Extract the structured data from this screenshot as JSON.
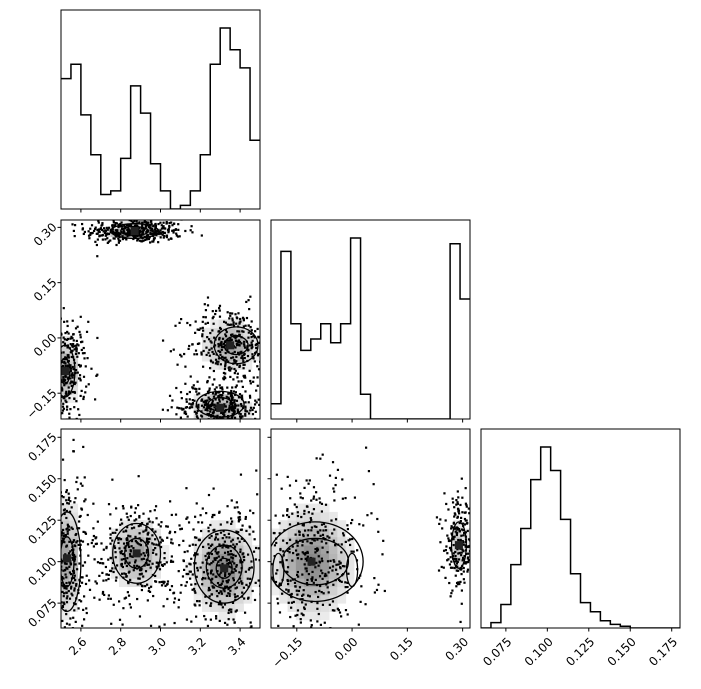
{
  "chart_data": {
    "type": "corner",
    "title": "",
    "parameters": [
      {
        "label": "",
        "range": [
          2.5,
          3.5
        ],
        "ticks": [
          "2.6",
          "2.8",
          "3.0",
          "3.2",
          "3.4"
        ],
        "tick_values": [
          2.6,
          2.8,
          3.0,
          3.2,
          3.4
        ]
      },
      {
        "label": "",
        "range": [
          -0.22,
          0.32
        ],
        "ticks": [
          "−0.15",
          "0.00",
          "0.15",
          "0.30"
        ],
        "tick_values": [
          -0.15,
          0.0,
          0.15,
          0.3
        ]
      },
      {
        "label": "",
        "range": [
          0.06,
          0.18
        ],
        "ticks": [
          "0.075",
          "0.100",
          "0.125",
          "0.150",
          "0.175"
        ],
        "tick_values": [
          0.075,
          0.1,
          0.125,
          0.15,
          0.175
        ]
      }
    ],
    "histograms": [
      {
        "param": 0,
        "bin_edges": [
          2.5,
          2.525,
          2.55,
          2.575,
          2.6,
          2.625,
          2.65,
          2.675,
          2.7,
          2.725,
          2.75,
          2.775,
          2.8,
          2.825,
          2.85,
          2.875,
          2.9,
          2.925,
          2.95,
          2.975,
          3.0,
          3.025,
          3.05,
          3.075,
          3.1,
          3.125,
          3.15,
          3.175,
          3.2,
          3.225,
          3.25,
          3.275,
          3.3,
          3.325,
          3.35,
          3.375,
          3.4,
          3.425,
          3.45,
          3.475,
          3.5
        ],
        "counts": [
          0.72,
          0.72,
          0.8,
          0.8,
          0.52,
          0.52,
          0.3,
          0.3,
          0.08,
          0.08,
          0.1,
          0.1,
          0.28,
          0.28,
          0.68,
          0.68,
          0.53,
          0.53,
          0.25,
          0.25,
          0.1,
          0.1,
          0.0,
          0.0,
          0.02,
          0.02,
          0.1,
          0.1,
          0.3,
          0.3,
          0.8,
          0.8,
          1.0,
          1.0,
          0.88,
          0.88,
          0.78,
          0.78,
          0.38,
          0.38
        ]
      },
      {
        "param": 1,
        "bin_edges": [
          -0.22,
          -0.2065,
          -0.193,
          -0.1795,
          -0.166,
          -0.1525,
          -0.139,
          -0.1255,
          -0.112,
          -0.0985,
          -0.085,
          -0.0715,
          -0.058,
          -0.0445,
          -0.031,
          -0.0175,
          -0.004,
          0.0095,
          0.023,
          0.0365,
          0.05,
          0.0635,
          0.077,
          0.0905,
          0.104,
          0.1175,
          0.131,
          0.1445,
          0.158,
          0.1715,
          0.185,
          0.1985,
          0.212,
          0.2255,
          0.239,
          0.2525,
          0.266,
          0.2795,
          0.293,
          0.3065,
          0.32
        ],
        "counts": [
          0.08,
          0.08,
          0.88,
          0.88,
          0.5,
          0.5,
          0.36,
          0.36,
          0.42,
          0.42,
          0.5,
          0.5,
          0.4,
          0.4,
          0.5,
          0.5,
          0.95,
          0.95,
          0.13,
          0.13,
          0.0,
          0.0,
          0.0,
          0.0,
          0.0,
          0.0,
          0.0,
          0.0,
          0.0,
          0.0,
          0.0,
          0.0,
          0.0,
          0.0,
          0.0,
          0.0,
          0.92,
          0.92,
          0.63,
          0.63
        ]
      },
      {
        "param": 2,
        "bin_edges": [
          0.06,
          0.066,
          0.072,
          0.078,
          0.084,
          0.09,
          0.096,
          0.102,
          0.108,
          0.114,
          0.12,
          0.126,
          0.132,
          0.138,
          0.144,
          0.15,
          0.156,
          0.162,
          0.168,
          0.174,
          0.18
        ],
        "counts": [
          0.0,
          0.03,
          0.13,
          0.35,
          0.55,
          0.82,
          1.0,
          0.87,
          0.6,
          0.3,
          0.14,
          0.09,
          0.04,
          0.02,
          0.01,
          0.0,
          0.0,
          0.0,
          0.0,
          0.0
        ]
      }
    ],
    "pairs": [
      {
        "x_param": 0,
        "y_param": 1,
        "modes": [
          {
            "x": 2.87,
            "y": 0.29,
            "sx": 0.09,
            "sy": 0.012,
            "w": 0.9
          },
          {
            "x": 2.52,
            "y": -0.09,
            "sx": 0.04,
            "sy": 0.05,
            "w": 0.8
          },
          {
            "x": 3.35,
            "y": -0.02,
            "sx": 0.08,
            "sy": 0.04,
            "w": 0.8
          },
          {
            "x": 3.3,
            "y": -0.19,
            "sx": 0.08,
            "sy": 0.025,
            "w": 0.9
          }
        ],
        "contours": [
          {
            "cx": 2.87,
            "cy": 0.29,
            "rx": 0.12,
            "ry": 0.02
          },
          {
            "cx": 2.87,
            "cy": 0.29,
            "rx": 0.07,
            "ry": 0.012
          },
          {
            "cx": 2.52,
            "cy": -0.09,
            "rx": 0.05,
            "ry": 0.07
          },
          {
            "cx": 2.52,
            "cy": -0.09,
            "rx": 0.025,
            "ry": 0.035
          },
          {
            "cx": 3.38,
            "cy": -0.02,
            "rx": 0.11,
            "ry": 0.05
          },
          {
            "cx": 3.38,
            "cy": -0.02,
            "rx": 0.06,
            "ry": 0.025
          },
          {
            "cx": 3.3,
            "cy": -0.18,
            "rx": 0.12,
            "ry": 0.035
          },
          {
            "cx": 3.3,
            "cy": -0.18,
            "rx": 0.06,
            "ry": 0.018
          }
        ]
      },
      {
        "x_param": 0,
        "y_param": 2,
        "modes": [
          {
            "x": 2.53,
            "y": 0.102,
            "sx": 0.04,
            "sy": 0.02,
            "w": 0.8
          },
          {
            "x": 2.88,
            "y": 0.105,
            "sx": 0.08,
            "sy": 0.012,
            "w": 0.8
          },
          {
            "x": 3.32,
            "y": 0.096,
            "sx": 0.09,
            "sy": 0.015,
            "w": 1.0
          }
        ],
        "contours": [
          {
            "cx": 2.53,
            "cy": 0.1,
            "rx": 0.07,
            "ry": 0.03
          },
          {
            "cx": 2.53,
            "cy": 0.1,
            "rx": 0.035,
            "ry": 0.015
          },
          {
            "cx": 2.88,
            "cy": 0.105,
            "rx": 0.12,
            "ry": 0.018
          },
          {
            "cx": 2.88,
            "cy": 0.105,
            "rx": 0.06,
            "ry": 0.009
          },
          {
            "cx": 3.32,
            "cy": 0.097,
            "rx": 0.15,
            "ry": 0.022
          },
          {
            "cx": 3.32,
            "cy": 0.097,
            "rx": 0.09,
            "ry": 0.013
          },
          {
            "cx": 3.32,
            "cy": 0.096,
            "rx": 0.04,
            "ry": 0.006
          }
        ]
      },
      {
        "x_param": 1,
        "y_param": 2,
        "modes": [
          {
            "x": -0.11,
            "y": 0.1,
            "sx": 0.06,
            "sy": 0.018,
            "w": 1.0
          },
          {
            "x": 0.29,
            "y": 0.11,
            "sx": 0.015,
            "sy": 0.01,
            "w": 0.5
          }
        ],
        "contours": [
          {
            "cx": -0.1,
            "cy": 0.1,
            "rx": 0.13,
            "ry": 0.024
          },
          {
            "cx": -0.1,
            "cy": 0.1,
            "rx": 0.09,
            "ry": 0.014
          },
          {
            "cx": -0.2,
            "cy": 0.095,
            "rx": 0.015,
            "ry": 0.01
          },
          {
            "cx": 0.0,
            "cy": 0.095,
            "rx": 0.015,
            "ry": 0.01
          },
          {
            "cx": 0.29,
            "cy": 0.11,
            "rx": 0.02,
            "ry": 0.014
          }
        ]
      }
    ],
    "grid": false,
    "legend": "none"
  }
}
